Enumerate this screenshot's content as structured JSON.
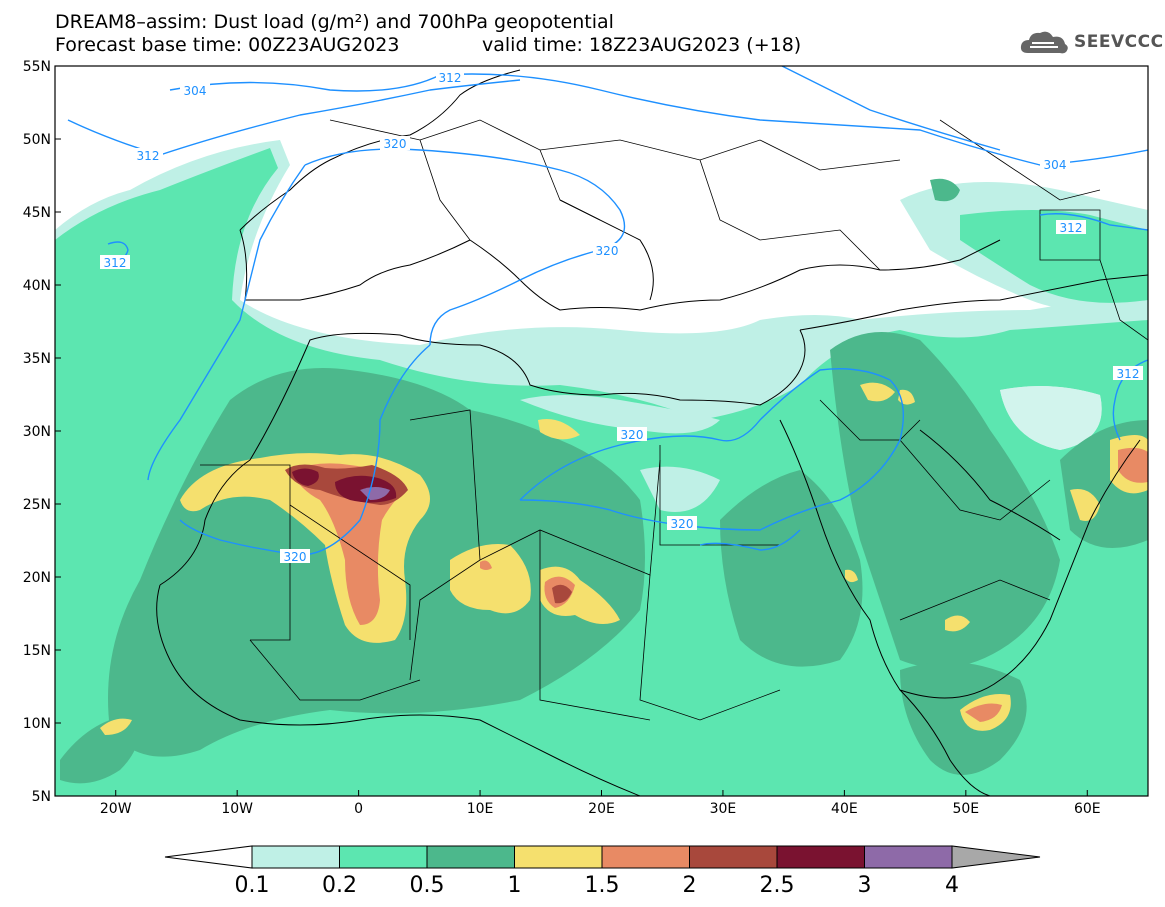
{
  "title": {
    "line1": "DREAM8–assim: Dust load (g/m²) and 700hPa geopotential",
    "line2": "Forecast base time: 00Z23AUG2023",
    "valid": "valid time: 18Z23AUG2023 (+18)"
  },
  "logo": {
    "icon": "cloud-icon",
    "text": "SEEVCCC"
  },
  "map": {
    "lon_range": [
      -25,
      65
    ],
    "lat_range": [
      5,
      55
    ],
    "lat_ticks": [
      "55N",
      "50N",
      "45N",
      "40N",
      "35N",
      "30N",
      "25N",
      "20N",
      "15N",
      "10N",
      "5N"
    ],
    "lon_ticks": [
      "20W",
      "10W",
      "0",
      "10E",
      "20E",
      "30E",
      "40E",
      "50E",
      "60E"
    ],
    "contour_color": "#1e90ff",
    "contour_labels": [
      "304",
      "312",
      "312",
      "312",
      "320",
      "320",
      "320",
      "320",
      "320",
      "304",
      "312",
      "312"
    ]
  },
  "colorbar": {
    "labels": [
      "0.1",
      "0.2",
      "0.5",
      "1",
      "1.5",
      "2",
      "2.5",
      "3",
      "4"
    ],
    "colors": [
      "#bff0e6",
      "#5ce6b0",
      "#4cb88c",
      "#f5e06e",
      "#e88a64",
      "#a8483c",
      "#7a1230",
      "#8e6aa8"
    ],
    "over_color": "#a8a8a8"
  }
}
